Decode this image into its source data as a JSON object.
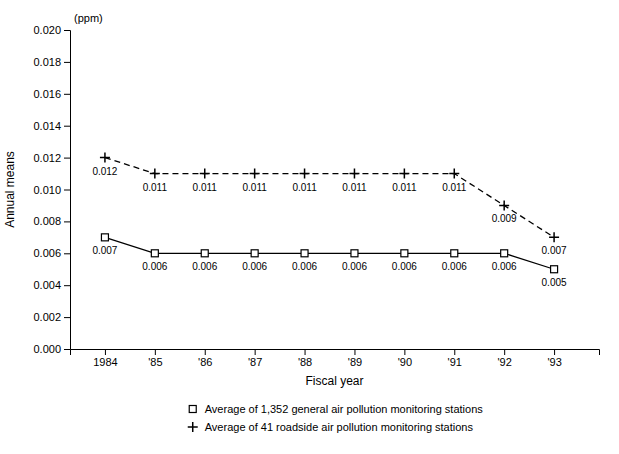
{
  "chart_data": {
    "type": "line",
    "x_label": "Fiscal year",
    "y_label": "Annual means",
    "annotations": [
      "(ppm)"
    ],
    "x": [
      1984,
      1985,
      1986,
      1987,
      1988,
      1989,
      1990,
      1991,
      1992,
      1993
    ],
    "series": [
      {
        "name": "Average of 1,352 general air pollution monitoring stations",
        "color": "#000000",
        "marker": "square",
        "line_style": "solid",
        "values": [
          0.007,
          0.006,
          0.006,
          0.006,
          0.006,
          0.006,
          0.006,
          0.006,
          0.006,
          0.005
        ]
      },
      {
        "name": "Average of 41 roadside air pollution monitoring stations",
        "color": "#000000",
        "marker": "plus",
        "line_style": "dashed",
        "values": [
          0.012,
          0.011,
          0.011,
          0.011,
          0.011,
          0.011,
          0.011,
          0.011,
          0.009,
          0.007
        ]
      }
    ],
    "xlim": [
      1983.3,
      1993.9
    ],
    "xticks": [
      1984,
      {
        "value": 1985,
        "label": "'85"
      },
      {
        "value": 1986,
        "label": "'86"
      },
      {
        "value": 1987,
        "label": "'87"
      },
      {
        "value": 1988,
        "label": "'88"
      },
      {
        "value": 1989,
        "label": "'89"
      },
      {
        "value": 1990,
        "label": "'90"
      },
      {
        "value": 1991,
        "label": "'91"
      },
      {
        "value": 1992,
        "label": "'92"
      },
      {
        "value": 1993,
        "label": "'93"
      }
    ],
    "ylim": [
      0.0,
      0.02
    ],
    "yticks": [
      {
        "value": 0,
        "label": "0.000"
      },
      0.002,
      0.004,
      0.006,
      0.008,
      {
        "value": 0.01,
        "label": "0.010"
      },
      0.012,
      0.014,
      0.016,
      0.018,
      {
        "value": 0.02,
        "label": "0.020"
      }
    ],
    "data_labels": true,
    "grid": false,
    "legend": "bottom"
  }
}
